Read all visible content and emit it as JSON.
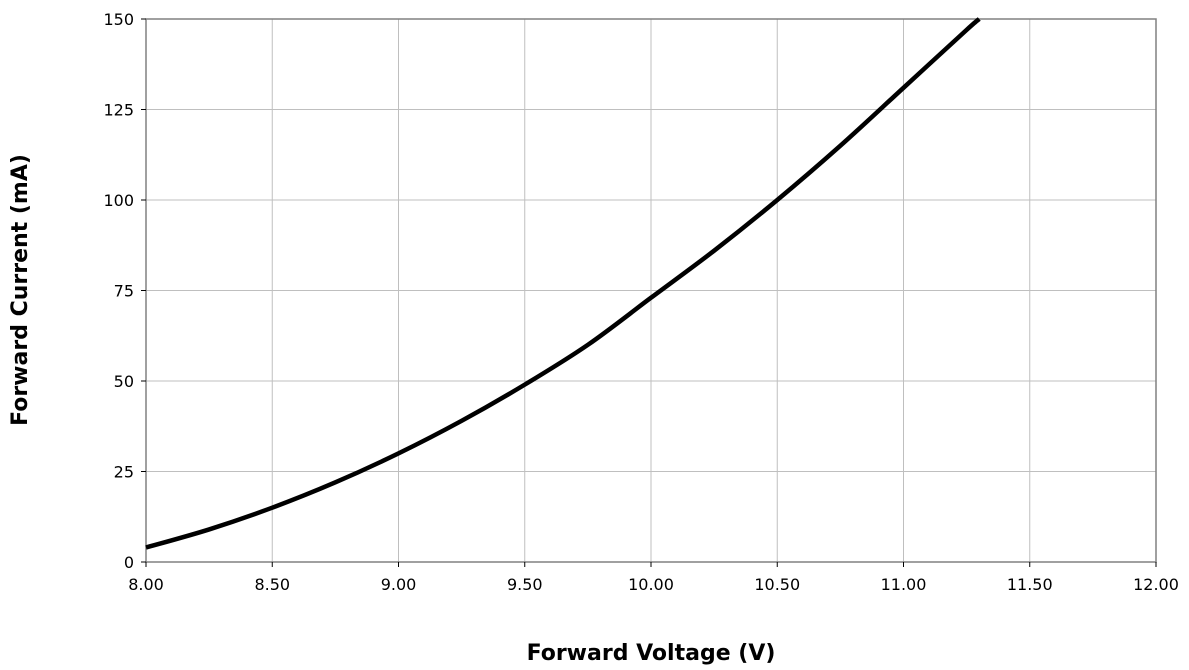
{
  "chart_data": {
    "type": "line",
    "title": "",
    "xlabel": "Forward Voltage (V)",
    "ylabel": "Forward Current (mA)",
    "xlim": [
      8.0,
      12.0
    ],
    "ylim": [
      0,
      150
    ],
    "x_ticks": [
      "8.00",
      "8.50",
      "9.00",
      "9.50",
      "10.00",
      "10.50",
      "11.00",
      "11.50",
      "12.00"
    ],
    "y_ticks": [
      "0",
      "25",
      "50",
      "75",
      "100",
      "125",
      "150"
    ],
    "grid": true,
    "legend": "none",
    "series": [
      {
        "color": "#000000",
        "x": [
          8.0,
          8.25,
          8.5,
          8.75,
          9.0,
          9.25,
          9.5,
          9.75,
          10.0,
          10.25,
          10.5,
          10.75,
          11.0,
          11.25,
          11.3
        ],
        "y": [
          4,
          9,
          15,
          22,
          30,
          39,
          49,
          60,
          73,
          86,
          100,
          115,
          131,
          147,
          150
        ]
      }
    ]
  }
}
